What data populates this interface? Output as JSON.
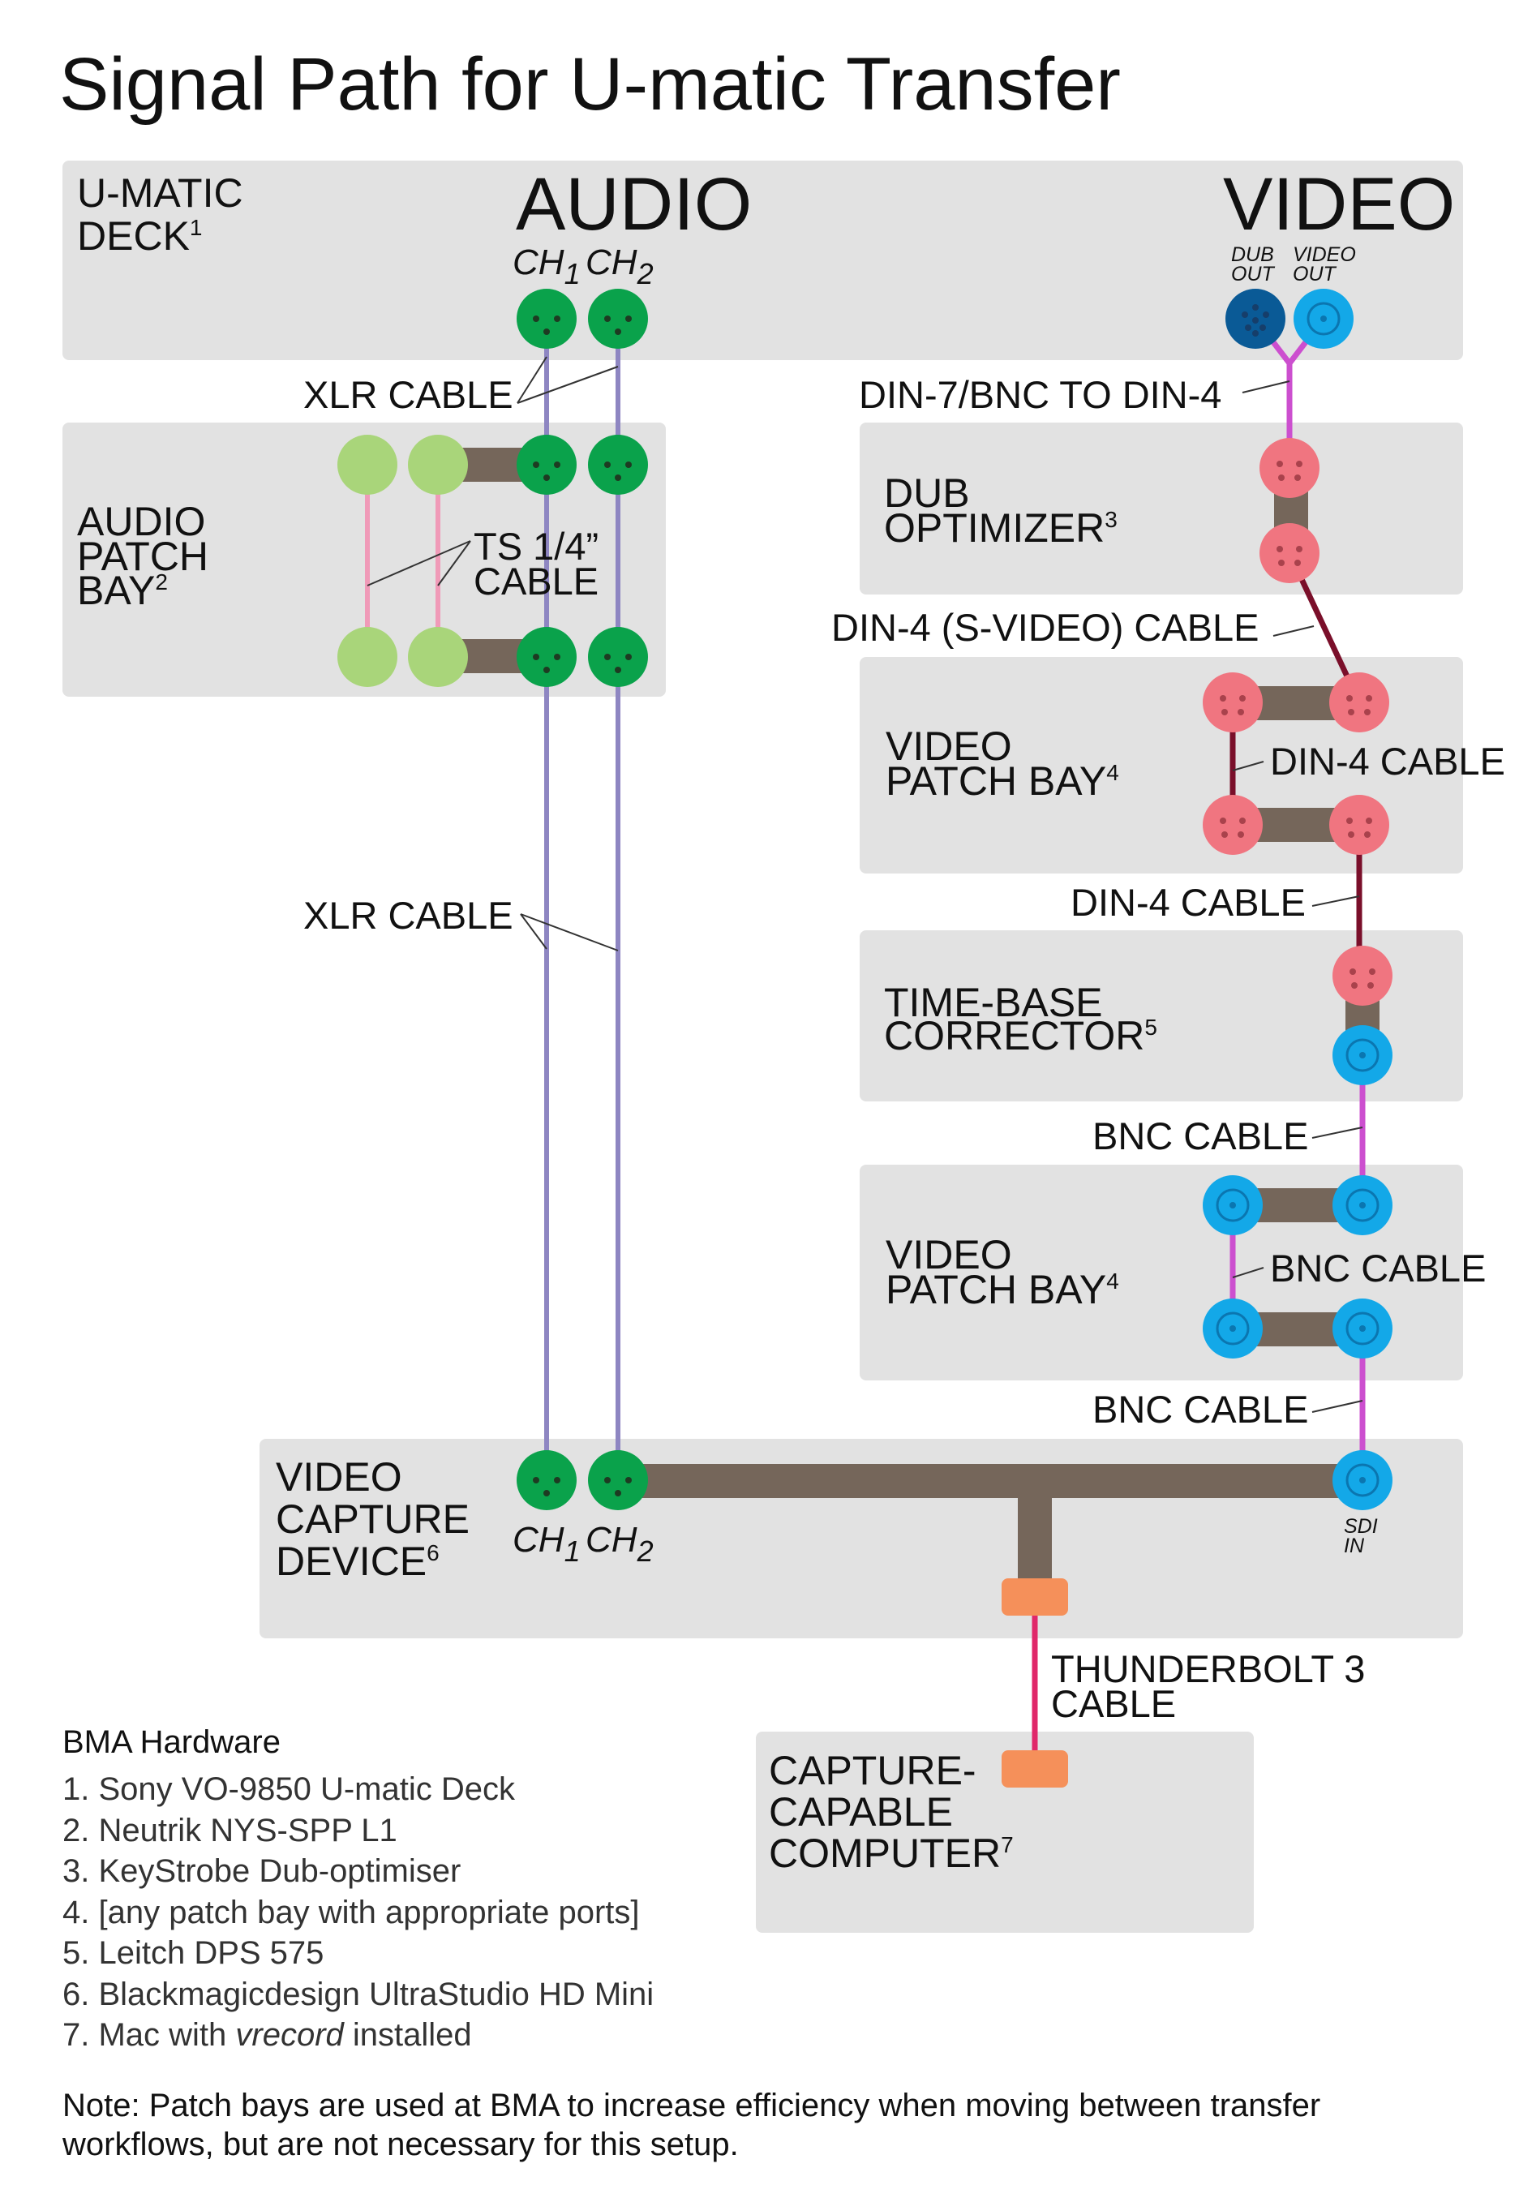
{
  "title": "Signal Path for U-matic Transfer",
  "colors": {
    "box": "#e2e2e2",
    "xlr_port": "#0aa24b",
    "ts_port": "#a9d57a",
    "din_port": "#f07580",
    "bnc_port": "#13a8e8",
    "din7_port": "#0a5a96",
    "bridge": "#75665a",
    "audio_cable": "#8e86c2",
    "video_cable": "#cc4fcf",
    "svideo_cable": "#7a0f2a",
    "ts_cable": "#f09ab8",
    "thunderbolt_cable": "#e0286a",
    "thunderbolt_port": "#f5905a"
  },
  "boxes": {
    "deck": {
      "line1": "U-MATIC",
      "line2": "DECK",
      "sup": "1"
    },
    "audio_patch": {
      "line1": "AUDIO",
      "line2": "PATCH",
      "line3": "BAY",
      "sup": "2"
    },
    "dub_optimizer": {
      "line1": "DUB",
      "line2": "OPTIMIZER",
      "sup": "3"
    },
    "video_patch_1": {
      "line1": "VIDEO",
      "line2": "PATCH BAY",
      "sup": "4"
    },
    "tbc": {
      "line1": "TIME-BASE",
      "line2": "CORRECTOR",
      "sup": "5"
    },
    "video_patch_2": {
      "line1": "VIDEO",
      "line2": "PATCH BAY",
      "sup": "4"
    },
    "capture": {
      "line1": "VIDEO",
      "line2": "CAPTURE",
      "line3": "DEVICE",
      "sup": "6"
    },
    "computer": {
      "line1": "CAPTURE-",
      "line2": "CAPABLE",
      "line3": "COMPUTER",
      "sup": "7"
    }
  },
  "headings": {
    "audio": "AUDIO",
    "video": "VIDEO"
  },
  "ports": {
    "ch": "CH",
    "ch1_sub": "1",
    "ch2_sub": "2",
    "dub_out_line1": "DUB",
    "dub_out_line2": "OUT",
    "video_out_line1": "VIDEO",
    "video_out_line2": "OUT",
    "sdi_in_line1": "SDI",
    "sdi_in_line2": "IN"
  },
  "cables": {
    "xlr_top": "XLR CABLE",
    "xlr_bottom": "XLR CABLE",
    "ts_line1": "TS 1/4”",
    "ts_line2": "CABLE",
    "din7_bnc": "DIN-7/BNC TO DIN-4",
    "svideo": "DIN-4 (S-VIDEO) CABLE",
    "din4_patch": "DIN-4 CABLE",
    "din4_tbc": "DIN-4 CABLE",
    "bnc_tbc": "BNC CABLE",
    "bnc_patch": "BNC CABLE",
    "bnc_capture": "BNC CABLE",
    "thunderbolt_line1": "THUNDERBOLT 3",
    "thunderbolt_line2": "CABLE"
  },
  "legend": {
    "heading": "BMA Hardware",
    "items": [
      "1. Sony VO-9850 U-matic Deck",
      "2. Neutrik NYS-SPP L1",
      "3. KeyStrobe Dub-optimiser",
      "4. [any patch bay with appropriate ports]",
      "5. Leitch DPS 575",
      "6. Blackmagicdesign UltraStudio HD Mini"
    ],
    "item7_before": "7. Mac with ",
    "item7_em": "vrecord",
    "item7_after": " installed"
  },
  "note": "Note: Patch bays are used at BMA to increase efficiency when moving between transfer workflows, but are not necessary for this setup."
}
